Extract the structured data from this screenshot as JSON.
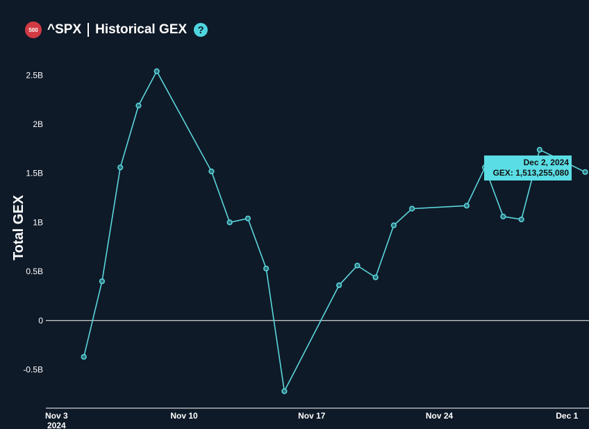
{
  "header": {
    "badge_text": "500",
    "ticker": "^SPX",
    "title": "Historical GEX",
    "help_label": "?"
  },
  "tooltip": {
    "date": "Dec 2, 2024",
    "value_label": "GEX: 1,513,255,080"
  },
  "colors": {
    "background": "#0f1a28",
    "line": "#5bd6dc",
    "zero_line": "#ffffff",
    "badge": "#d23a44",
    "tooltip_bg": "#5bdde5"
  },
  "chart_data": {
    "type": "line",
    "ylabel": "Total GEX",
    "xlabel": "",
    "yticks": [
      {
        "value": 2500000000,
        "label": "2.5B"
      },
      {
        "value": 2000000000,
        "label": "2B"
      },
      {
        "value": 1500000000,
        "label": "1.5B"
      },
      {
        "value": 1000000000,
        "label": "1B"
      },
      {
        "value": 500000000,
        "label": "0.5B"
      },
      {
        "value": 0,
        "label": "0"
      },
      {
        "value": -500000000,
        "label": "-0.5B"
      }
    ],
    "xticks": [
      {
        "date": "2024-11-03",
        "label": "Nov 3",
        "sublabel": "2024"
      },
      {
        "date": "2024-11-10",
        "label": "Nov 10",
        "sublabel": ""
      },
      {
        "date": "2024-11-17",
        "label": "Nov 17",
        "sublabel": ""
      },
      {
        "date": "2024-11-24",
        "label": "Nov 24",
        "sublabel": ""
      },
      {
        "date": "2024-12-01",
        "label": "Dec 1",
        "sublabel": ""
      }
    ],
    "xlim": [
      "2024-11-02T10:00",
      "2024-12-02T05:00"
    ],
    "ylim": [
      -900000000,
      2700000000
    ],
    "series": [
      {
        "points": [
          {
            "x": "2024-11-04T12:00",
            "y": -370000000
          },
          {
            "x": "2024-11-05T12:00",
            "y": 400000000
          },
          {
            "x": "2024-11-06T12:00",
            "y": 1560000000
          },
          {
            "x": "2024-11-07T12:00",
            "y": 2190000000
          },
          {
            "x": "2024-11-08T12:00",
            "y": 2540000000
          },
          {
            "x": "2024-11-11T12:00",
            "y": 1520000000
          },
          {
            "x": "2024-11-12T12:00",
            "y": 1000000000
          },
          {
            "x": "2024-11-13T12:00",
            "y": 1040000000
          },
          {
            "x": "2024-11-14T12:00",
            "y": 530000000
          },
          {
            "x": "2024-11-15T12:00",
            "y": -720000000
          },
          {
            "x": "2024-11-18T12:00",
            "y": 360000000
          },
          {
            "x": "2024-11-19T12:00",
            "y": 560000000
          },
          {
            "x": "2024-11-20T12:00",
            "y": 440000000
          },
          {
            "x": "2024-11-21T12:00",
            "y": 970000000
          },
          {
            "x": "2024-11-22T12:00",
            "y": 1140000000
          },
          {
            "x": "2024-11-25T12:00",
            "y": 1170000000
          },
          {
            "x": "2024-11-26T12:00",
            "y": 1560000000
          },
          {
            "x": "2024-11-27T12:00",
            "y": 1060000000
          },
          {
            "x": "2024-11-28T12:00",
            "y": 1030000000
          },
          {
            "x": "2024-11-29T12:00",
            "y": 1740000000
          },
          {
            "x": "2024-12-02T00:00",
            "y": 1513255080
          }
        ]
      }
    ]
  }
}
